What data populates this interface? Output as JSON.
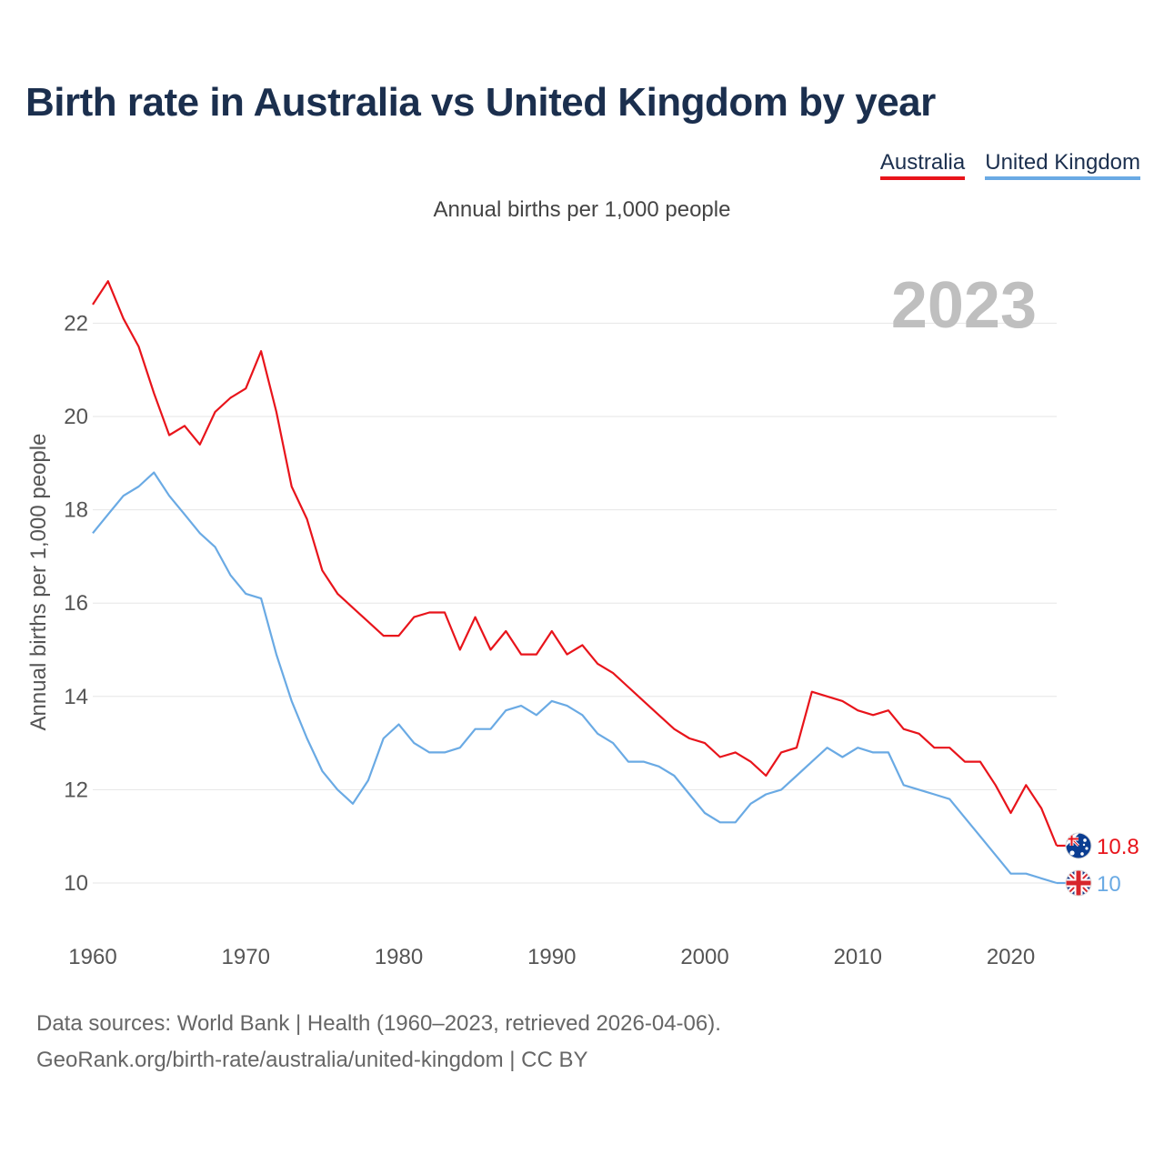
{
  "title": "Birth rate in Australia vs United Kingdom by year",
  "subtitle": "Annual births per 1,000 people",
  "year_label": "2023",
  "footer": {
    "line1": "Data sources: World Bank | Health (1960–2023, retrieved 2026-04-06).",
    "line2": "GeoRank.org/birth-rate/australia/united-kingdom | CC BY"
  },
  "colors": {
    "australia": "#e8141b",
    "uk": "#6aaae4",
    "grid": "#e6e6e6",
    "axis_text": "#555555",
    "year": "#bfbfbf"
  },
  "chart_data": {
    "type": "line",
    "title": "Birth rate in Australia vs United Kingdom by year",
    "xlabel": "",
    "ylabel": "Annual births per 1,000 people",
    "xlim": [
      1960,
      2023
    ],
    "ylim": [
      9,
      23.5
    ],
    "x_ticks": [
      1960,
      1970,
      1980,
      1990,
      2000,
      2010,
      2020
    ],
    "y_ticks": [
      10,
      12,
      14,
      16,
      18,
      20,
      22
    ],
    "x": [
      1960,
      1961,
      1962,
      1963,
      1964,
      1965,
      1966,
      1967,
      1968,
      1969,
      1970,
      1971,
      1972,
      1973,
      1974,
      1975,
      1976,
      1977,
      1978,
      1979,
      1980,
      1981,
      1982,
      1983,
      1984,
      1985,
      1986,
      1987,
      1988,
      1989,
      1990,
      1991,
      1992,
      1993,
      1994,
      1995,
      1996,
      1997,
      1998,
      1999,
      2000,
      2001,
      2002,
      2003,
      2004,
      2005,
      2006,
      2007,
      2008,
      2009,
      2010,
      2011,
      2012,
      2013,
      2014,
      2015,
      2016,
      2017,
      2018,
      2019,
      2020,
      2021,
      2022,
      2023
    ],
    "series": [
      {
        "name": "Australia",
        "end_label": "10.8",
        "values": [
          22.4,
          22.9,
          22.1,
          21.5,
          20.5,
          19.6,
          19.8,
          19.4,
          20.1,
          20.4,
          20.6,
          21.4,
          20.1,
          18.5,
          17.8,
          16.7,
          16.2,
          15.9,
          15.6,
          15.3,
          15.3,
          15.7,
          15.8,
          15.8,
          15.0,
          15.7,
          15.0,
          15.4,
          14.9,
          14.9,
          15.4,
          14.9,
          15.1,
          14.7,
          14.5,
          14.2,
          13.9,
          13.6,
          13.3,
          13.1,
          13.0,
          12.7,
          12.8,
          12.6,
          12.3,
          12.8,
          12.9,
          14.1,
          14.0,
          13.9,
          13.7,
          13.6,
          13.7,
          13.3,
          13.2,
          12.9,
          12.9,
          12.6,
          12.6,
          12.1,
          11.5,
          12.1,
          11.6,
          10.8
        ]
      },
      {
        "name": "United Kingdom",
        "end_label": "10",
        "values": [
          17.5,
          17.9,
          18.3,
          18.5,
          18.8,
          18.3,
          17.9,
          17.5,
          17.2,
          16.6,
          16.2,
          16.1,
          14.9,
          13.9,
          13.1,
          12.4,
          12.0,
          11.7,
          12.2,
          13.1,
          13.4,
          13.0,
          12.8,
          12.8,
          12.9,
          13.3,
          13.3,
          13.7,
          13.8,
          13.6,
          13.9,
          13.8,
          13.6,
          13.2,
          13.0,
          12.6,
          12.6,
          12.5,
          12.3,
          11.9,
          11.5,
          11.3,
          11.3,
          11.7,
          11.9,
          12.0,
          12.3,
          12.6,
          12.9,
          12.7,
          12.9,
          12.8,
          12.8,
          12.1,
          12.0,
          11.9,
          11.8,
          11.4,
          11.0,
          10.6,
          10.2,
          10.2,
          10.1,
          10.0
        ]
      }
    ]
  }
}
